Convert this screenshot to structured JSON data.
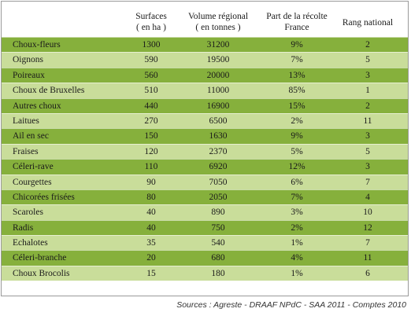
{
  "table": {
    "headers": {
      "surfaces_line1": "Surfaces",
      "surfaces_line2": "( en ha )",
      "volume_line1": "Volume régional",
      "volume_line2": "( en tonnes )",
      "part_line1": "Part de la récolte",
      "part_line2": "France",
      "rang": "Rang national"
    },
    "rows": [
      {
        "name": "Choux-fleurs",
        "surface": "1300",
        "volume": "31200",
        "part": "9%",
        "rang": "2"
      },
      {
        "name": "Oignons",
        "surface": "590",
        "volume": "19500",
        "part": "7%",
        "rang": "5"
      },
      {
        "name": "Poireaux",
        "surface": "560",
        "volume": "20000",
        "part": "13%",
        "rang": "3"
      },
      {
        "name": "Choux de Bruxelles",
        "surface": "510",
        "volume": "11000",
        "part": "85%",
        "rang": "1"
      },
      {
        "name": "Autres choux",
        "surface": "440",
        "volume": "16900",
        "part": "15%",
        "rang": "2"
      },
      {
        "name": "Laitues",
        "surface": "270",
        "volume": "6500",
        "part": "2%",
        "rang": "11"
      },
      {
        "name": "Ail en sec",
        "surface": "150",
        "volume": "1630",
        "part": "9%",
        "rang": "3"
      },
      {
        "name": "Fraises",
        "surface": "120",
        "volume": "2370",
        "part": "5%",
        "rang": "5"
      },
      {
        "name": "Céleri-rave",
        "surface": "110",
        "volume": "6920",
        "part": "12%",
        "rang": "3"
      },
      {
        "name": "Courgettes",
        "surface": "90",
        "volume": "7050",
        "part": "6%",
        "rang": "7"
      },
      {
        "name": "Chicorées frisées",
        "surface": "80",
        "volume": "2050",
        "part": "7%",
        "rang": "4"
      },
      {
        "name": "Scaroles",
        "surface": "40",
        "volume": "890",
        "part": "3%",
        "rang": "10"
      },
      {
        "name": "Radis",
        "surface": "40",
        "volume": "750",
        "part": "2%",
        "rang": "12"
      },
      {
        "name": "Echalotes",
        "surface": "35",
        "volume": "540",
        "part": "1%",
        "rang": "7"
      },
      {
        "name": "Céleri-branche",
        "surface": "20",
        "volume": "680",
        "part": "4%",
        "rang": "11"
      },
      {
        "name": "Choux Brocolis",
        "surface": "15",
        "volume": "180",
        "part": "1%",
        "rang": "6"
      }
    ]
  },
  "colors": {
    "row_dark": "#86b03c",
    "row_light": "#c9dd9a"
  },
  "source": "Sources : Agreste - DRAAF NPdC - SAA 2011 - Comptes 2010"
}
